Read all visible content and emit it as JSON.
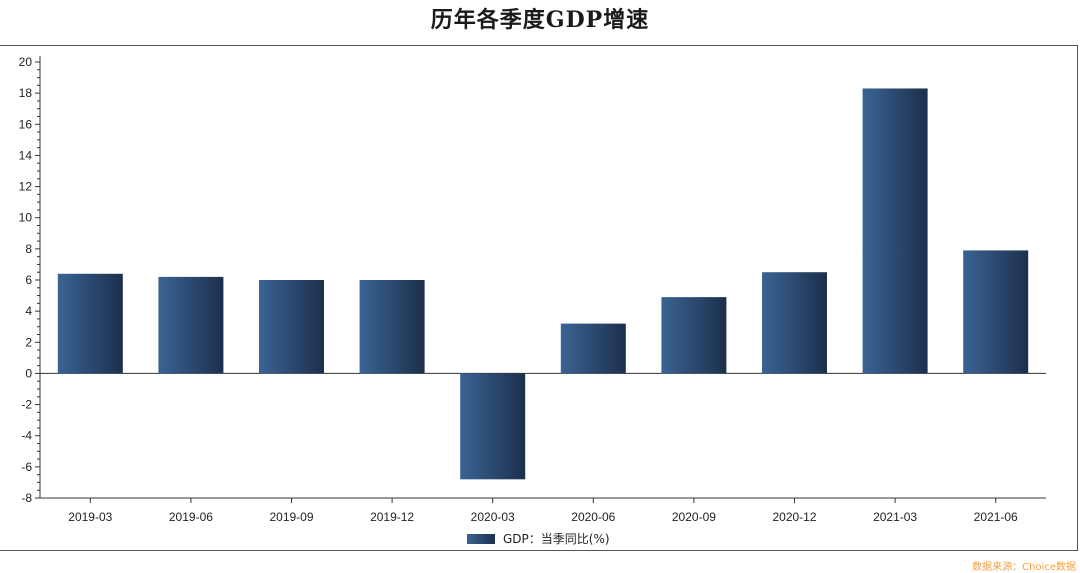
{
  "chart_data": {
    "type": "bar",
    "title": "历年各季度GDP增速",
    "categories": [
      "2019-03",
      "2019-06",
      "2019-09",
      "2019-12",
      "2020-03",
      "2020-06",
      "2020-09",
      "2020-12",
      "2021-03",
      "2021-06"
    ],
    "series": [
      {
        "name": "GDP：当季同比(%)",
        "values": [
          6.4,
          6.2,
          6.0,
          6.0,
          -6.8,
          3.2,
          4.9,
          6.5,
          18.3,
          7.9
        ]
      }
    ],
    "ylim": [
      -8,
      20
    ],
    "yticks": [
      "20",
      "18",
      "16",
      "14",
      "12",
      "10",
      "8",
      "6",
      "4",
      "2",
      "0",
      "-2",
      "-4",
      "-6",
      "-8"
    ],
    "xlabel": "",
    "ylabel": "",
    "grid": false,
    "legend_position": "bottom",
    "colors": {
      "bar_light": "#3a6494",
      "bar_dark": "#1c2f4c",
      "axis": "#333333",
      "source": "#f5a040"
    }
  },
  "source_note": "数据来源：Choice数据"
}
